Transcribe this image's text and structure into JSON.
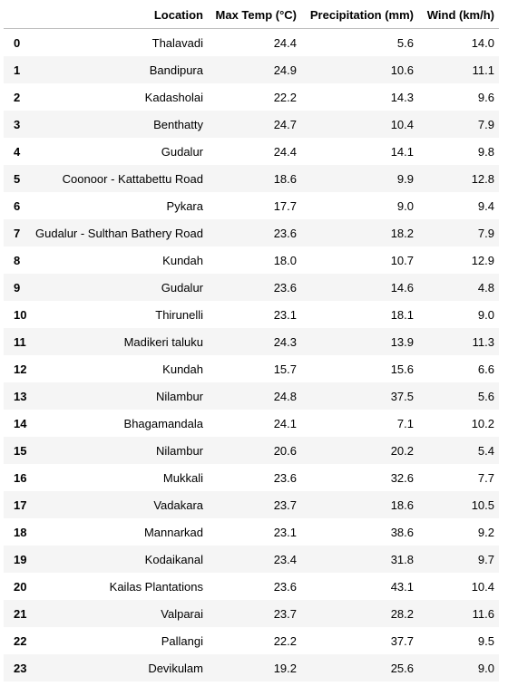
{
  "table": {
    "columns": [
      "",
      "Location",
      "Max Temp (°C)",
      "Precipitation (mm)",
      "Wind (km/h)"
    ],
    "rows": [
      {
        "index": "0",
        "location": "Thalavadi",
        "max_temp": "24.4",
        "precipitation": "5.6",
        "wind": "14.0"
      },
      {
        "index": "1",
        "location": "Bandipura",
        "max_temp": "24.9",
        "precipitation": "10.6",
        "wind": "11.1"
      },
      {
        "index": "2",
        "location": "Kadasholai",
        "max_temp": "22.2",
        "precipitation": "14.3",
        "wind": "9.6"
      },
      {
        "index": "3",
        "location": "Benthatty",
        "max_temp": "24.7",
        "precipitation": "10.4",
        "wind": "7.9"
      },
      {
        "index": "4",
        "location": "Gudalur",
        "max_temp": "24.4",
        "precipitation": "14.1",
        "wind": "9.8"
      },
      {
        "index": "5",
        "location": "Coonoor - Kattabettu Road",
        "max_temp": "18.6",
        "precipitation": "9.9",
        "wind": "12.8"
      },
      {
        "index": "6",
        "location": "Pykara",
        "max_temp": "17.7",
        "precipitation": "9.0",
        "wind": "9.4"
      },
      {
        "index": "7",
        "location": "Gudalur - Sulthan Bathery Road",
        "max_temp": "23.6",
        "precipitation": "18.2",
        "wind": "7.9"
      },
      {
        "index": "8",
        "location": "Kundah",
        "max_temp": "18.0",
        "precipitation": "10.7",
        "wind": "12.9"
      },
      {
        "index": "9",
        "location": "Gudalur",
        "max_temp": "23.6",
        "precipitation": "14.6",
        "wind": "4.8"
      },
      {
        "index": "10",
        "location": "Thirunelli",
        "max_temp": "23.1",
        "precipitation": "18.1",
        "wind": "9.0"
      },
      {
        "index": "11",
        "location": "Madikeri taluku",
        "max_temp": "24.3",
        "precipitation": "13.9",
        "wind": "11.3"
      },
      {
        "index": "12",
        "location": "Kundah",
        "max_temp": "15.7",
        "precipitation": "15.6",
        "wind": "6.6"
      },
      {
        "index": "13",
        "location": "Nilambur",
        "max_temp": "24.8",
        "precipitation": "37.5",
        "wind": "5.6"
      },
      {
        "index": "14",
        "location": "Bhagamandala",
        "max_temp": "24.1",
        "precipitation": "7.1",
        "wind": "10.2"
      },
      {
        "index": "15",
        "location": "Nilambur",
        "max_temp": "20.6",
        "precipitation": "20.2",
        "wind": "5.4"
      },
      {
        "index": "16",
        "location": "Mukkali",
        "max_temp": "23.6",
        "precipitation": "32.6",
        "wind": "7.7"
      },
      {
        "index": "17",
        "location": "Vadakara",
        "max_temp": "23.7",
        "precipitation": "18.6",
        "wind": "10.5"
      },
      {
        "index": "18",
        "location": "Mannarkad",
        "max_temp": "23.1",
        "precipitation": "38.6",
        "wind": "9.2"
      },
      {
        "index": "19",
        "location": "Kodaikanal",
        "max_temp": "23.4",
        "precipitation": "31.8",
        "wind": "9.7"
      },
      {
        "index": "20",
        "location": "Kailas Plantations",
        "max_temp": "23.6",
        "precipitation": "43.1",
        "wind": "10.4"
      },
      {
        "index": "21",
        "location": "Valparai",
        "max_temp": "23.7",
        "precipitation": "28.2",
        "wind": "11.6"
      },
      {
        "index": "22",
        "location": "Pallangi",
        "max_temp": "22.2",
        "precipitation": "37.7",
        "wind": "9.5"
      },
      {
        "index": "23",
        "location": "Devikulam",
        "max_temp": "19.2",
        "precipitation": "25.6",
        "wind": "9.0"
      }
    ]
  },
  "colors": {
    "stripe": "#f5f5f5",
    "header_rule": "#bdbdbd",
    "text": "#000000",
    "background": "#ffffff"
  }
}
